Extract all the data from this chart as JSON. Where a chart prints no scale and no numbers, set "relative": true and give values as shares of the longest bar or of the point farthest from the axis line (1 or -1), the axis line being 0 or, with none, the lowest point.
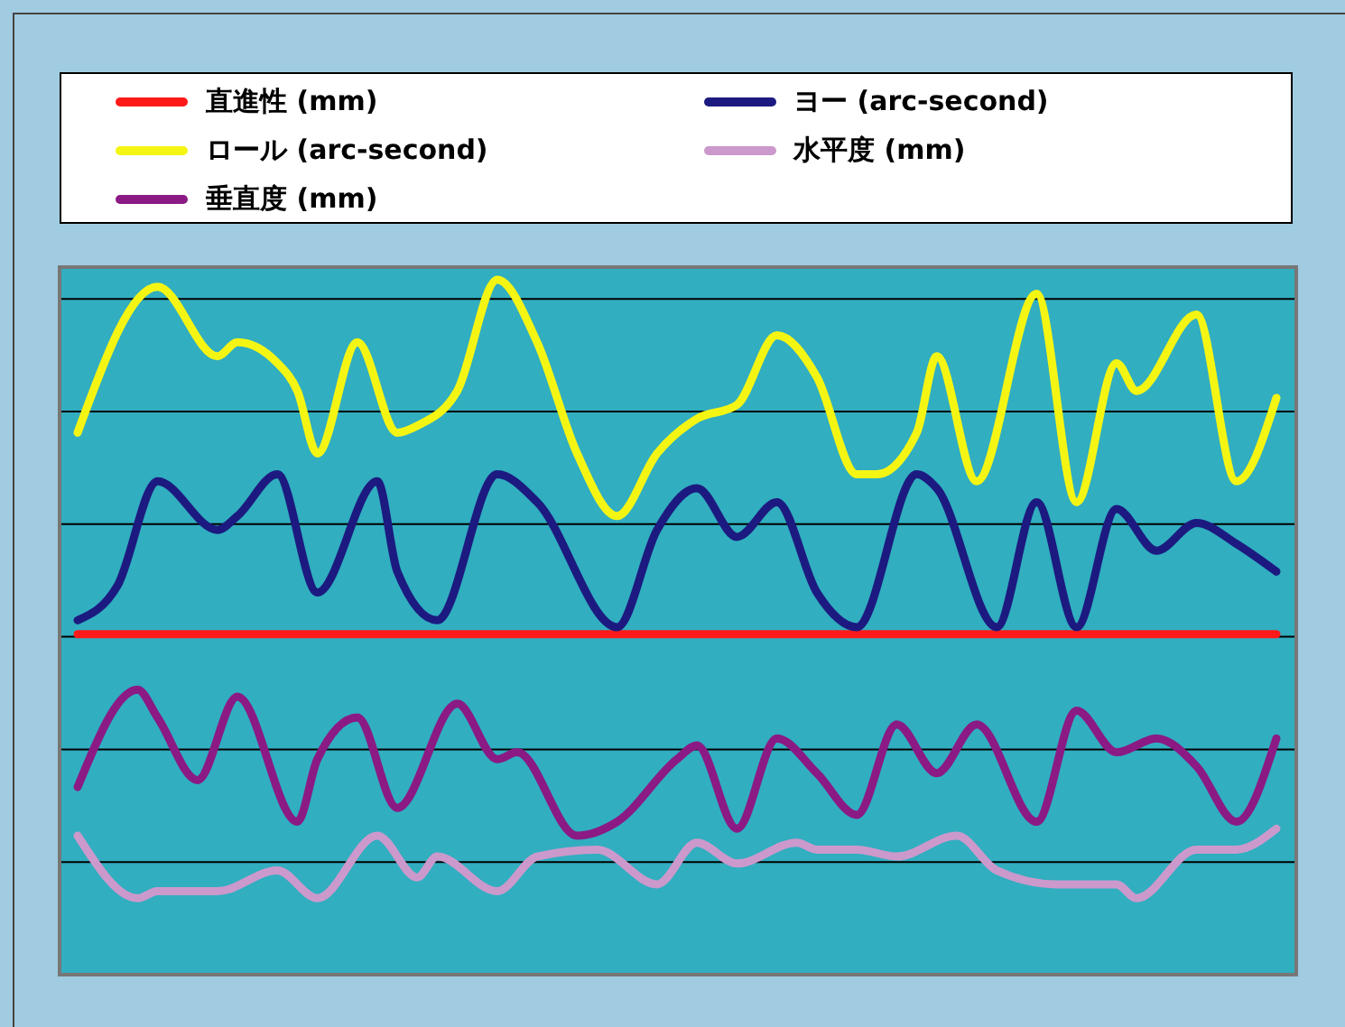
{
  "chart_data": {
    "type": "line",
    "relative": true,
    "legend": "top",
    "grid": "y",
    "line_style": "solid",
    "marker": "none",
    "categories": [
      null,
      null,
      null,
      null,
      null,
      null,
      null,
      null,
      null,
      null,
      null,
      null,
      null,
      null,
      null,
      null,
      null,
      null,
      null,
      null,
      null,
      null,
      null,
      null,
      null,
      null,
      null,
      null,
      null,
      null,
      null,
      null,
      null,
      null,
      null,
      null,
      null,
      null,
      null,
      null,
      null,
      null,
      null,
      null,
      null,
      null,
      null,
      null,
      null,
      null,
      null,
      null,
      null,
      null,
      null,
      null,
      null,
      null,
      null,
      null,
      null
    ],
    "series": [
      {
        "name": "直進性 (mm)",
        "color": "#ff1a1a",
        "values": [
          0.49,
          null,
          null,
          null,
          null,
          null,
          null,
          null,
          null,
          null,
          null,
          null,
          null,
          null,
          null,
          null,
          null,
          null,
          null,
          null,
          null,
          null,
          null,
          null,
          null,
          null,
          null,
          null,
          null,
          null,
          null,
          null,
          null,
          null,
          null,
          null,
          null,
          null,
          null,
          null,
          null,
          null,
          null,
          null,
          null,
          null,
          null,
          null,
          null,
          null,
          null,
          null,
          null,
          null,
          null,
          null,
          null,
          null,
          null,
          null,
          0.49
        ]
      },
      {
        "name": "ヨー (arc-second)",
        "color": "#1c1a80",
        "values": [
          0.51,
          null,
          0.56,
          null,
          0.71,
          null,
          null,
          0.64,
          0.66,
          null,
          0.72,
          null,
          0.55,
          null,
          null,
          0.71,
          0.58,
          null,
          0.51,
          null,
          null,
          0.72,
          null,
          0.68,
          null,
          null,
          null,
          0.5,
          null,
          0.64,
          null,
          0.7,
          null,
          0.63,
          null,
          0.68,
          null,
          0.55,
          null,
          0.5,
          null,
          null,
          0.72,
          0.7,
          null,
          null,
          0.5,
          null,
          0.68,
          null,
          0.5,
          null,
          0.67,
          null,
          0.61,
          null,
          0.65,
          null,
          0.62,
          null,
          0.58
        ]
      },
      {
        "name": "ロール (arc-second)",
        "color": "#f5f514",
        "values": [
          0.78,
          null,
          null,
          null,
          0.99,
          null,
          null,
          0.89,
          0.91,
          null,
          0.88,
          0.84,
          0.75,
          null,
          0.91,
          null,
          0.78,
          0.79,
          null,
          0.84,
          null,
          1.0,
          null,
          0.91,
          null,
          0.75,
          null,
          0.66,
          null,
          0.75,
          null,
          0.8,
          null,
          0.82,
          null,
          0.92,
          null,
          0.86,
          null,
          0.72,
          0.72,
          null,
          0.78,
          0.89,
          null,
          0.71,
          null,
          null,
          0.98,
          null,
          0.68,
          null,
          0.88,
          0.84,
          null,
          null,
          0.95,
          null,
          0.71,
          null,
          0.83
        ]
      },
      {
        "name": "水平度 (mm)",
        "color": "#cc99cc",
        "values": [
          0.2,
          null,
          null,
          0.11,
          0.12,
          null,
          null,
          0.12,
          null,
          null,
          0.15,
          null,
          0.11,
          null,
          null,
          0.2,
          null,
          0.14,
          0.17,
          null,
          null,
          0.12,
          null,
          0.17,
          null,
          null,
          0.18,
          null,
          null,
          0.13,
          null,
          0.19,
          null,
          0.16,
          null,
          null,
          0.19,
          0.18,
          null,
          0.18,
          null,
          0.17,
          null,
          null,
          0.2,
          null,
          0.15,
          null,
          null,
          0.13,
          null,
          null,
          0.13,
          0.11,
          null,
          null,
          0.18,
          null,
          0.18,
          null,
          0.21
        ]
      },
      {
        "name": "垂直度 (mm)",
        "color": "#8b1a85",
        "values": [
          0.27,
          null,
          null,
          0.41,
          0.37,
          null,
          0.28,
          null,
          0.4,
          null,
          null,
          0.22,
          0.31,
          null,
          0.37,
          null,
          0.24,
          null,
          null,
          0.39,
          null,
          0.31,
          0.32,
          null,
          null,
          0.2,
          null,
          0.22,
          null,
          null,
          0.31,
          0.33,
          null,
          0.21,
          null,
          0.34,
          null,
          0.29,
          null,
          0.23,
          null,
          0.36,
          null,
          0.29,
          null,
          0.36,
          null,
          null,
          0.22,
          null,
          0.38,
          null,
          0.32,
          null,
          0.34,
          null,
          0.3,
          null,
          0.22,
          null,
          0.34
        ]
      }
    ]
  }
}
